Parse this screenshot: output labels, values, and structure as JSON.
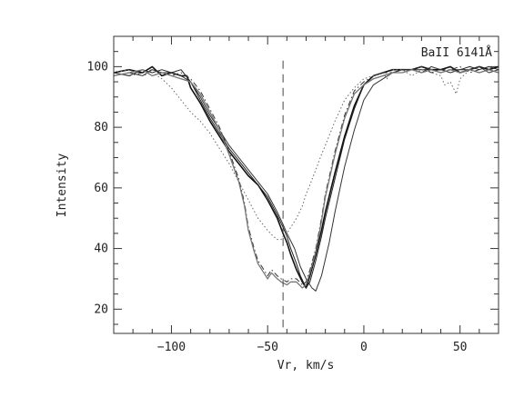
{
  "chart_data": {
    "type": "line",
    "title": "",
    "annotation": "BaII 6141Å",
    "xlabel": "Vr, km/s",
    "ylabel": "Intensity",
    "xlim": [
      -130,
      70
    ],
    "ylim": [
      12,
      110
    ],
    "x_major_ticks": [
      -100,
      -50,
      0,
      50
    ],
    "x_tick_labels": [
      "−100",
      "−50",
      "0",
      "50"
    ],
    "y_major_ticks": [
      20,
      40,
      60,
      80,
      100
    ],
    "y_tick_labels": [
      "20",
      "40",
      "60",
      "80",
      "100"
    ],
    "x_minor_step": 10,
    "y_minor_step": 5,
    "grid": false,
    "legend": "none",
    "reference_line_x": -42,
    "series": [
      {
        "style": "solid-thick",
        "x": [
          -130,
          -122,
          -115,
          -110,
          -105,
          -100,
          -95,
          -92,
          -90,
          -85,
          -80,
          -75,
          -70,
          -65,
          -60,
          -55,
          -50,
          -45,
          -42,
          -40,
          -38,
          -35,
          -32,
          -30,
          -28,
          -25,
          -22,
          -20,
          -15,
          -10,
          -5,
          0,
          5,
          10,
          15,
          20,
          25,
          30,
          35,
          40,
          45,
          50,
          55,
          60,
          65,
          70
        ],
        "y": [
          98,
          99,
          98,
          100,
          97,
          98,
          97,
          97,
          93,
          88,
          82,
          77,
          72,
          68,
          64,
          61,
          56,
          50,
          45,
          42,
          38,
          33,
          29,
          27,
          31,
          38,
          46,
          52,
          65,
          77,
          87,
          94,
          97,
          98,
          99,
          99,
          99,
          100,
          99,
          99,
          100,
          98,
          99,
          100,
          99,
          100
        ]
      },
      {
        "style": "solid-thin",
        "x": [
          -130,
          -122,
          -115,
          -110,
          -105,
          -100,
          -95,
          -90,
          -85,
          -80,
          -75,
          -70,
          -65,
          -60,
          -55,
          -50,
          -45,
          -42,
          -40,
          -38,
          -35,
          -33,
          -30,
          -28,
          -25,
          -22,
          -20,
          -15,
          -10,
          -5,
          0,
          5,
          10,
          15,
          20,
          25,
          30,
          35,
          40,
          45,
          50,
          55,
          60,
          65,
          70
        ],
        "y": [
          98,
          97,
          99,
          98,
          99,
          98,
          99,
          95,
          89,
          83,
          78,
          73,
          69,
          65,
          61,
          57,
          51,
          47,
          44,
          40,
          35,
          31,
          27,
          29,
          36,
          44,
          50,
          63,
          76,
          86,
          94,
          96,
          97,
          98,
          99,
          99,
          99,
          99,
          98,
          99,
          99,
          100,
          99,
          100,
          99
        ]
      },
      {
        "style": "solid-thin-2",
        "x": [
          -130,
          -122,
          -115,
          -110,
          -105,
          -100,
          -95,
          -90,
          -85,
          -80,
          -75,
          -70,
          -65,
          -60,
          -55,
          -50,
          -45,
          -42,
          -40,
          -36,
          -33,
          -30,
          -27,
          -25,
          -22,
          -18,
          -15,
          -10,
          -5,
          0,
          5,
          10,
          15,
          20,
          25,
          30,
          35,
          40,
          45,
          50,
          55,
          60,
          65,
          70
        ],
        "y": [
          97,
          98,
          97,
          99,
          98,
          98,
          97,
          95,
          90,
          84,
          79,
          74,
          70,
          66,
          62,
          58,
          52,
          48,
          45,
          40,
          34,
          30,
          27,
          26,
          31,
          42,
          52,
          67,
          79,
          89,
          94,
          96,
          98,
          99,
          99,
          98,
          100,
          99,
          98,
          99,
          99,
          100,
          98,
          99
        ]
      },
      {
        "style": "dash-dot",
        "x": [
          -130,
          -122,
          -115,
          -110,
          -105,
          -100,
          -95,
          -90,
          -85,
          -80,
          -75,
          -70,
          -65,
          -62,
          -60,
          -57,
          -55,
          -52,
          -50,
          -48,
          -45,
          -43,
          -40,
          -38,
          -35,
          -32,
          -30,
          -28,
          -25,
          -22,
          -20,
          -15,
          -10,
          -5,
          0,
          5,
          10,
          15,
          20,
          25,
          30,
          35,
          40,
          45,
          50,
          55,
          60,
          65,
          70
        ],
        "y": [
          98,
          97,
          98,
          99,
          98,
          97,
          98,
          96,
          92,
          86,
          80,
          72,
          63,
          55,
          47,
          40,
          36,
          33,
          31,
          33,
          31,
          30,
          29,
          30,
          30,
          28,
          29,
          33,
          40,
          50,
          58,
          72,
          84,
          92,
          95,
          97,
          98,
          98,
          99,
          99,
          100,
          98,
          99,
          99,
          100,
          98,
          99,
          100,
          99
        ]
      },
      {
        "style": "gray-solid",
        "x": [
          -130,
          -122,
          -115,
          -110,
          -105,
          -100,
          -95,
          -90,
          -85,
          -80,
          -75,
          -70,
          -65,
          -62,
          -60,
          -57,
          -55,
          -52,
          -50,
          -48,
          -45,
          -43,
          -40,
          -38,
          -35,
          -32,
          -30,
          -28,
          -25,
          -22,
          -20,
          -15,
          -10,
          -5,
          0,
          5,
          10,
          15,
          20,
          25,
          30,
          35,
          40,
          45,
          50,
          55,
          60,
          65,
          70
        ],
        "y": [
          97,
          98,
          99,
          97,
          98,
          97,
          96,
          95,
          91,
          85,
          79,
          71,
          62,
          54,
          46,
          39,
          35,
          32,
          30,
          32,
          30,
          29,
          28,
          29,
          29,
          27,
          28,
          32,
          39,
          49,
          57,
          71,
          83,
          91,
          94,
          96,
          97,
          98,
          98,
          99,
          98,
          99,
          98,
          99,
          98,
          99,
          98,
          99,
          98
        ]
      },
      {
        "style": "dotted",
        "x": [
          -130,
          -122,
          -115,
          -110,
          -105,
          -100,
          -95,
          -90,
          -85,
          -80,
          -75,
          -70,
          -65,
          -60,
          -55,
          -50,
          -47,
          -45,
          -43,
          -42,
          -40,
          -38,
          -35,
          -32,
          -30,
          -28,
          -25,
          -22,
          -20,
          -15,
          -10,
          -5,
          0,
          5,
          10,
          12,
          15,
          20,
          25,
          30,
          35,
          40,
          42,
          45,
          48,
          50,
          55,
          60,
          65,
          70
        ],
        "y": [
          98,
          99,
          97,
          98,
          96,
          93,
          89,
          85,
          82,
          78,
          73,
          68,
          62,
          56,
          50,
          46,
          44,
          43,
          43,
          44,
          45,
          47,
          50,
          54,
          58,
          61,
          66,
          71,
          74,
          82,
          89,
          93,
          96,
          97,
          98,
          96,
          99,
          99,
          97,
          99,
          98,
          97,
          94,
          95,
          91,
          96,
          99,
          98,
          99,
          98
        ]
      }
    ]
  }
}
